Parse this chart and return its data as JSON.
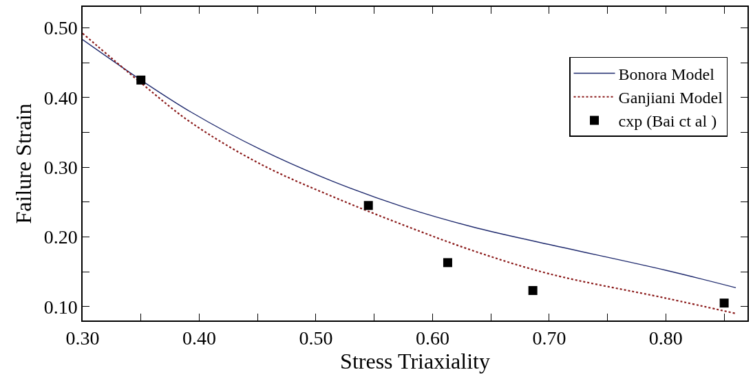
{
  "chart_data": {
    "type": "line",
    "xlabel": "Stress Triaxiality",
    "ylabel": "Failure Strain",
    "xlim": [
      0.3,
      0.87
    ],
    "ylim": [
      0.08,
      0.53
    ],
    "xticks": [
      {
        "value": 0.3,
        "label": "0.30"
      },
      {
        "value": 0.35,
        "label": null
      },
      {
        "value": 0.4,
        "label": "0.40"
      },
      {
        "value": 0.45,
        "label": null
      },
      {
        "value": 0.5,
        "label": "0.50"
      },
      {
        "value": 0.55,
        "label": null
      },
      {
        "value": 0.6,
        "label": "0.60"
      },
      {
        "value": 0.65,
        "label": null
      },
      {
        "value": 0.7,
        "label": "0.70"
      },
      {
        "value": 0.75,
        "label": null
      },
      {
        "value": 0.8,
        "label": "0.80"
      },
      {
        "value": 0.85,
        "label": null
      }
    ],
    "yticks": [
      {
        "value": 0.1,
        "label": "0.10"
      },
      {
        "value": 0.15,
        "label": null
      },
      {
        "value": 0.2,
        "label": "0.20"
      },
      {
        "value": 0.25,
        "label": null
      },
      {
        "value": 0.3,
        "label": "0.30"
      },
      {
        "value": 0.35,
        "label": null
      },
      {
        "value": 0.4,
        "label": "0.40"
      },
      {
        "value": 0.45,
        "label": null
      },
      {
        "value": 0.5,
        "label": "0.50"
      }
    ],
    "legend": "top right",
    "series": [
      {
        "name": "Bonora Model",
        "color": "#1f2a6e",
        "line_style": "solid",
        "marker": "none",
        "x": [
          0.3,
          0.35,
          0.393,
          0.453,
          0.514,
          0.575,
          0.635,
          0.7,
          0.8,
          0.86
        ],
        "values": [
          0.483,
          0.425,
          0.379,
          0.325,
          0.28,
          0.243,
          0.214,
          0.189,
          0.152,
          0.127
        ]
      },
      {
        "name": "Ganjiani Model",
        "color": "#8b1a1a",
        "line_style": "dotted",
        "marker": "none",
        "x": [
          0.3,
          0.35,
          0.393,
          0.453,
          0.514,
          0.575,
          0.635,
          0.7,
          0.8,
          0.86
        ],
        "values": [
          0.492,
          0.421,
          0.364,
          0.304,
          0.258,
          0.217,
          0.18,
          0.147,
          0.112,
          0.09
        ]
      },
      {
        "name": "cxp (Bai ct al )",
        "type": "scatter",
        "color": "#000000",
        "marker": "square",
        "x": [
          0.35,
          0.545,
          0.613,
          0.686,
          0.85
        ],
        "values": [
          0.425,
          0.245,
          0.163,
          0.123,
          0.105
        ]
      }
    ]
  }
}
